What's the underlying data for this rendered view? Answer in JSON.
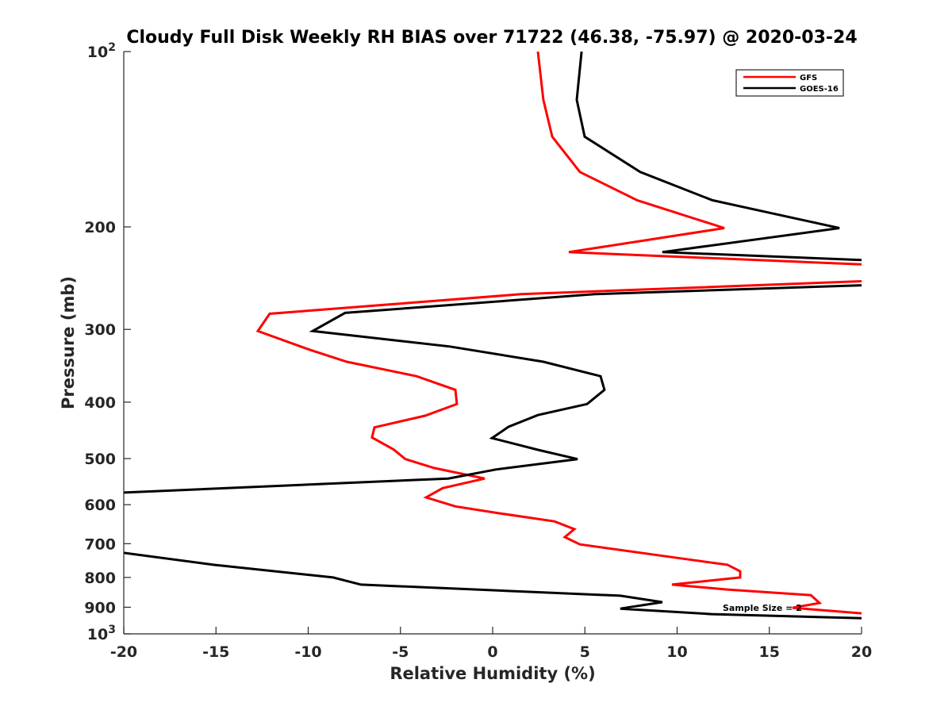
{
  "chart_data": {
    "type": "line",
    "title": "Cloudy Full Disk Weekly RH BIAS over 71722 (46.38, -75.97) @ 2020-03-24",
    "xlabel": "Relative Humidity (%)",
    "ylabel": "Pressure (mb)",
    "xlim": [
      -20,
      20
    ],
    "ylim": [
      100,
      1000
    ],
    "yscale": "log",
    "y_reversed": true,
    "grid": false,
    "legend_position": "top-right",
    "xticks": [
      "-20",
      "-15",
      "-10",
      "-5",
      "0",
      "5",
      "10",
      "15",
      "20"
    ],
    "xtick_values": [
      -20,
      -15,
      -10,
      -5,
      0,
      5,
      10,
      15,
      20
    ],
    "yticks": [
      {
        "value": 100,
        "base": "10",
        "exp": "2"
      },
      {
        "value": 200,
        "label": "200"
      },
      {
        "value": 300,
        "label": "300"
      },
      {
        "value": 400,
        "label": "400"
      },
      {
        "value": 500,
        "label": "500"
      },
      {
        "value": 600,
        "label": "600"
      },
      {
        "value": 700,
        "label": "700"
      },
      {
        "value": 800,
        "label": "800"
      },
      {
        "value": 900,
        "label": "900"
      },
      {
        "value": 1000,
        "base": "10",
        "exp": "3"
      }
    ],
    "annotation": "Sample Size = 2",
    "series": [
      {
        "name": "GFS",
        "color": "#ff0000",
        "points": [
          [
            2.45,
            100
          ],
          [
            2.75,
            121
          ],
          [
            3.23,
            140
          ],
          [
            4.73,
            161
          ],
          [
            7.83,
            180
          ],
          [
            12.56,
            201
          ],
          [
            4.13,
            221
          ],
          [
            20,
            232
          ],
          null,
          [
            20,
            248
          ],
          [
            1.55,
            261
          ],
          [
            -12.09,
            282
          ],
          [
            -12.73,
            302
          ],
          [
            -9.94,
            325
          ],
          [
            -7.91,
            341
          ],
          [
            -4.13,
            361
          ],
          [
            -2.02,
            381
          ],
          [
            -1.94,
            403
          ],
          [
            -3.66,
            422
          ],
          [
            -6.41,
            442
          ],
          [
            -6.54,
            460
          ],
          [
            -5.38,
            482
          ],
          [
            -4.73,
            501
          ],
          [
            -3.18,
            519
          ],
          [
            -0.43,
            541
          ],
          [
            -2.71,
            562
          ],
          [
            -3.61,
            583
          ],
          [
            -2.02,
            604
          ],
          [
            0.39,
            621
          ],
          [
            3.35,
            641
          ],
          [
            4.43,
            661
          ],
          [
            3.91,
            682
          ],
          [
            4.73,
            702
          ],
          [
            10.62,
            745
          ],
          [
            12.73,
            761
          ],
          [
            13.42,
            781
          ],
          [
            13.42,
            800
          ],
          [
            9.72,
            823
          ],
          [
            12.65,
            839
          ],
          [
            17.25,
            858
          ],
          [
            17.72,
            885
          ],
          [
            16.26,
            902
          ],
          [
            20,
            922
          ]
        ]
      },
      {
        "name": "GOES-16",
        "color": "#000000",
        "points": [
          [
            4.82,
            100
          ],
          [
            4.56,
            121
          ],
          [
            4.99,
            140
          ],
          [
            8.0,
            161
          ],
          [
            11.91,
            180
          ],
          [
            18.8,
            201
          ],
          [
            9.2,
            221
          ],
          [
            20,
            228
          ],
          null,
          [
            20,
            252
          ],
          [
            5.55,
            261
          ],
          [
            -8.0,
            281
          ],
          [
            -9.76,
            302
          ],
          [
            -2.32,
            321
          ],
          [
            2.75,
            341
          ],
          [
            5.85,
            361
          ],
          [
            6.06,
            381
          ],
          [
            5.12,
            403
          ],
          [
            2.45,
            421
          ],
          [
            0.86,
            441
          ],
          [
            -0.04,
            461
          ],
          [
            2.45,
            483
          ],
          [
            4.6,
            501
          ],
          [
            0.17,
            522
          ],
          [
            -2.41,
            541
          ],
          [
            -20,
            572
          ],
          null,
          [
            -20,
            726
          ],
          [
            -15.14,
            761
          ],
          [
            -8.65,
            800
          ],
          [
            -7.14,
            823
          ],
          [
            6.92,
            860
          ],
          [
            9.2,
            882
          ],
          [
            6.92,
            905
          ],
          [
            11.87,
            925
          ],
          [
            20,
            940
          ]
        ]
      }
    ]
  }
}
